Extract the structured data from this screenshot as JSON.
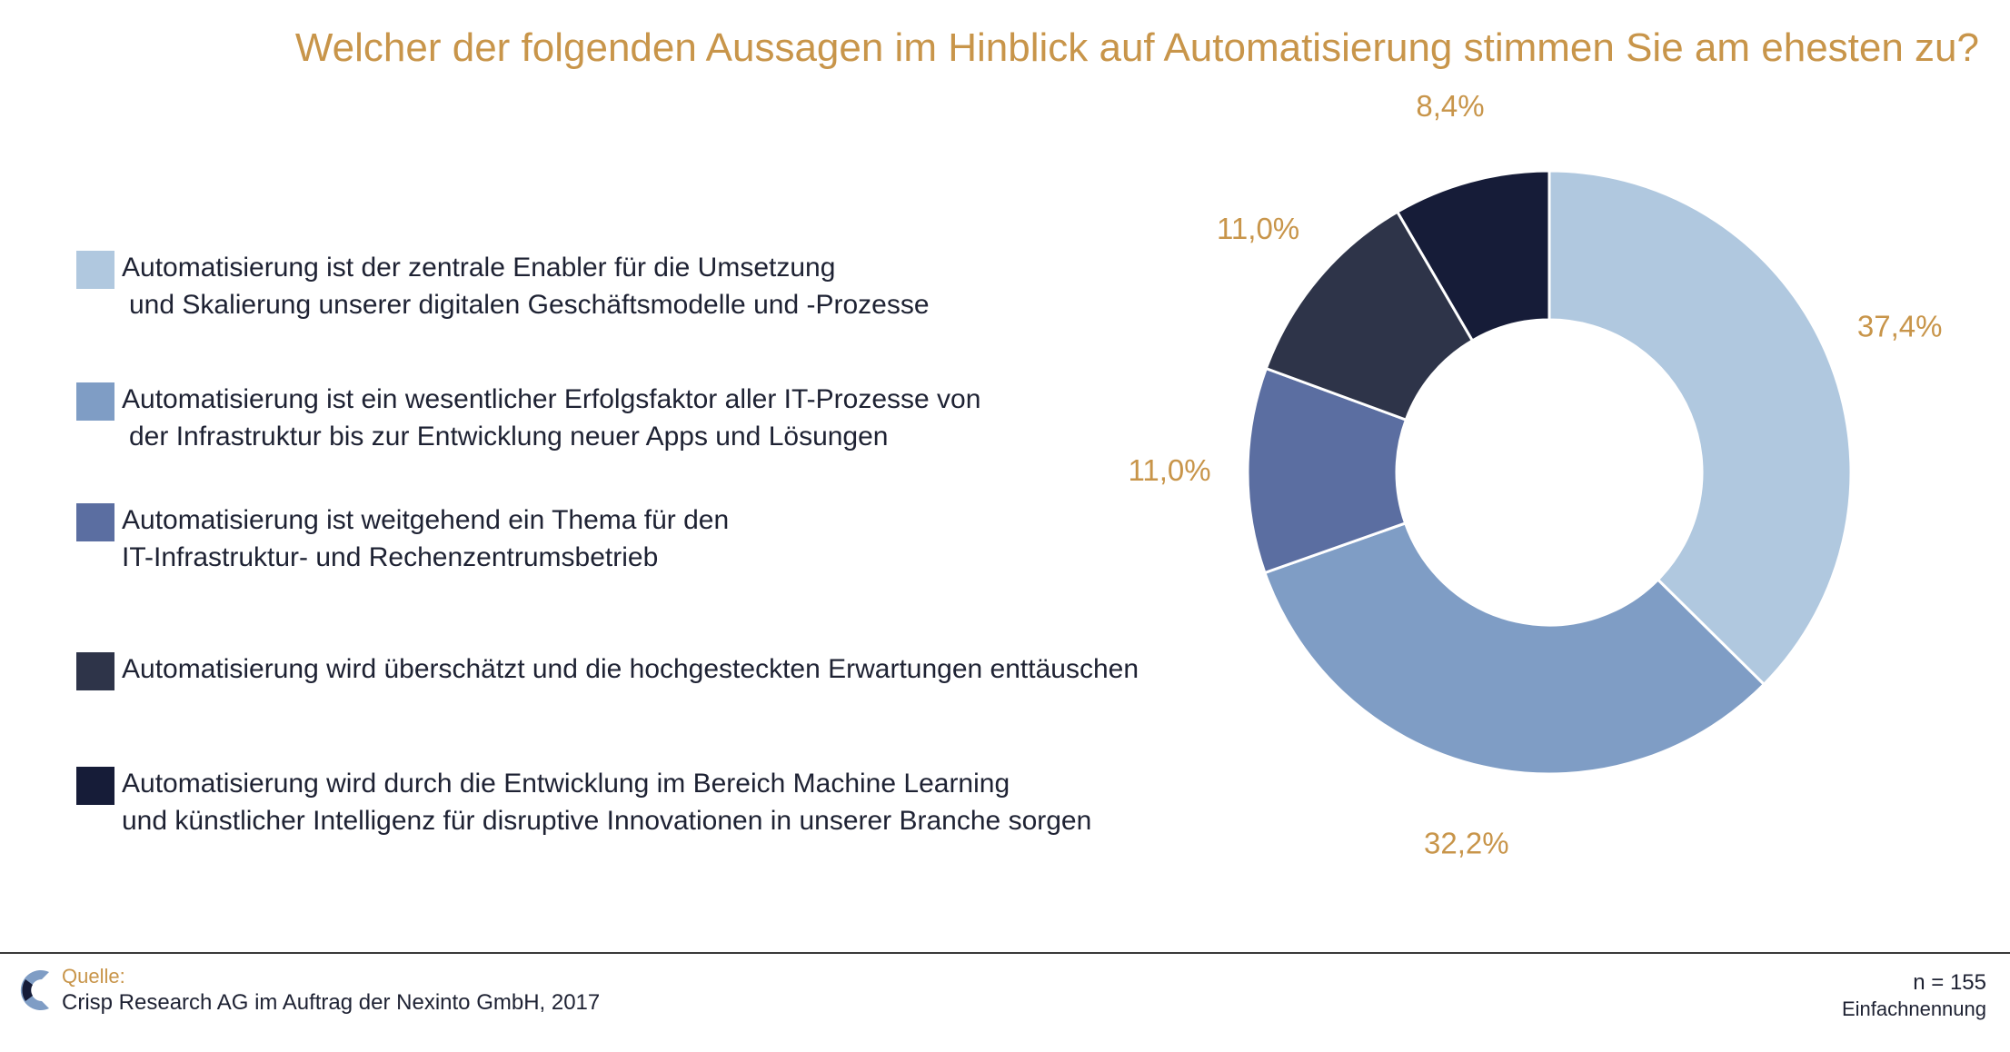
{
  "title": "Welcher der folgenden Aussagen im Hinblick auf Automatisierung stimmen Sie am ehesten zu?",
  "legend": [
    {
      "line1": "Automatisierung ist der zentrale Enabler für die Umsetzung",
      "line2": "und Skalierung unserer digitalen Geschäftsmodelle und -Prozesse",
      "color": "#b0c8df"
    },
    {
      "line1": "Automatisierung ist ein wesentlicher Erfolgsfaktor aller IT-Prozesse von",
      "line2": "der Infrastruktur bis zur Entwicklung neuer Apps und Lösungen",
      "color": "#7f9dc5"
    },
    {
      "line1": "Automatisierung ist weitgehend ein Thema für den",
      "line2": "IT-Infrastruktur- und Rechenzentrumsbetrieb",
      "color": "#5b6ea1"
    },
    {
      "line1": "Automatisierung wird überschätzt und die hochgesteckten Erwartungen enttäuschen",
      "line2": "",
      "color": "#2e3449"
    },
    {
      "line1": "Automatisierung wird durch die Entwicklung im Bereich Machine Learning",
      "line2": "und künstlicher Intelligenz für disruptive Innovationen in unserer Branche sorgen",
      "color": "#161c38"
    }
  ],
  "chart_data": {
    "type": "pie",
    "donut": true,
    "values": [
      37.4,
      32.2,
      11.0,
      11.0,
      8.4
    ],
    "labels": [
      "37,4%",
      "32,2%",
      "11,0%",
      "11,0%",
      "8,4%"
    ],
    "colors": [
      "#b0c8df",
      "#7f9dc5",
      "#5b6ea1",
      "#2e3449",
      "#161c38"
    ],
    "start": "12 o'clock",
    "direction": "clockwise"
  },
  "footer": {
    "source_label": "Quelle:",
    "source_text": "Crisp Research AG im Auftrag der Nexinto GmbH, 2017",
    "n": "n = 155",
    "mode": "Einfachnennung"
  }
}
